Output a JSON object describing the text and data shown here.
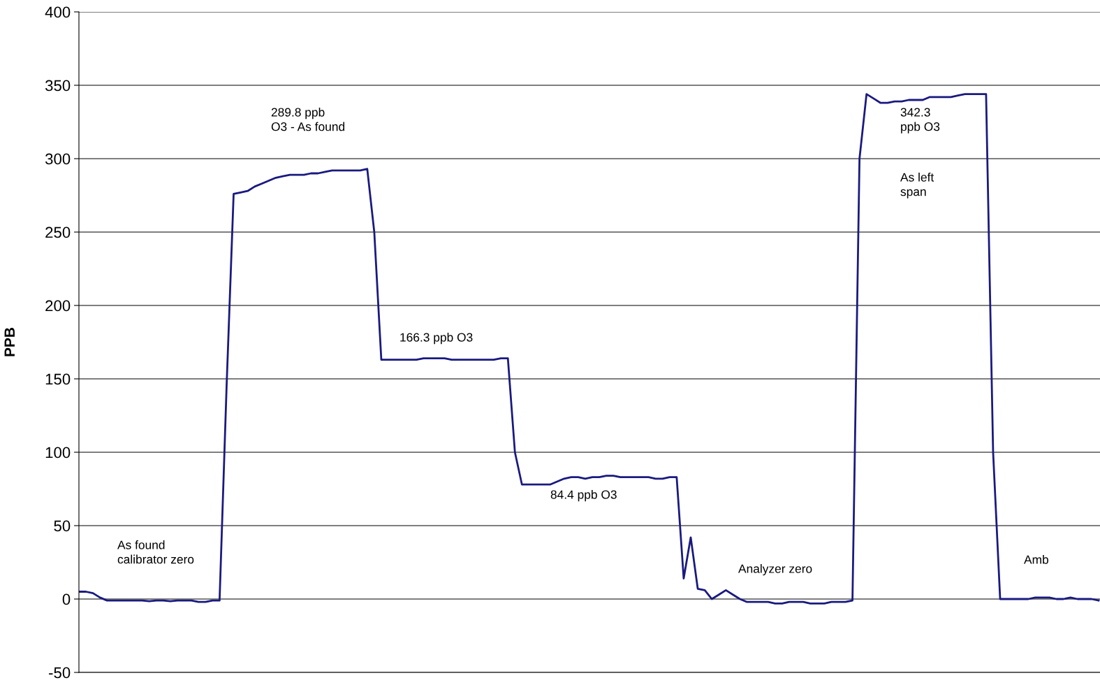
{
  "chart_data": {
    "type": "line",
    "ylabel": "PPB",
    "color": "#1a1a80",
    "categories": [
      null,
      null,
      null,
      null,
      null,
      null,
      null,
      null,
      null,
      null,
      null,
      null,
      null,
      null,
      null,
      null,
      null,
      null,
      null,
      null,
      null,
      null,
      null,
      null,
      null,
      null,
      null,
      null,
      null,
      null,
      null,
      null,
      null,
      null,
      null,
      null,
      null,
      null,
      null,
      null,
      null,
      null,
      null,
      null,
      null,
      null,
      null,
      null,
      null,
      null,
      null,
      null,
      null,
      null,
      null,
      null,
      null,
      null,
      null,
      null,
      null,
      null,
      null,
      null,
      null,
      null,
      null,
      null,
      null,
      null,
      null,
      null,
      null,
      null,
      null,
      null,
      null,
      null,
      null,
      null,
      null,
      null,
      null,
      null,
      null,
      null,
      null,
      null,
      null,
      null,
      null,
      null,
      null,
      null,
      null,
      null,
      null,
      null,
      null,
      null,
      null,
      null,
      null,
      null,
      null,
      null,
      null,
      null,
      null,
      null,
      null,
      null,
      null,
      null,
      null,
      null,
      null,
      null,
      null,
      null,
      null,
      null,
      null,
      null,
      null,
      null,
      null,
      null,
      null,
      null,
      null,
      null,
      null,
      null,
      null,
      null,
      null,
      null,
      null,
      null,
      null,
      null,
      null,
      null,
      null,
      null
    ],
    "values": [
      5,
      5,
      4,
      1,
      -1,
      -1,
      -1,
      -1,
      -1,
      -1,
      -1.5,
      -1,
      -1,
      -1.5,
      -1,
      -1,
      -1,
      -2,
      -2,
      -1,
      -1,
      145,
      276,
      277,
      278,
      281,
      283,
      285,
      287,
      288,
      289,
      289,
      289,
      290,
      290,
      291,
      292,
      292,
      292,
      292,
      292,
      293,
      250,
      163,
      163,
      163,
      163,
      163,
      163,
      164,
      164,
      164,
      164,
      163,
      163,
      163,
      163,
      163,
      163,
      163,
      164,
      164,
      100,
      78,
      78,
      78,
      78,
      78,
      80,
      82,
      83,
      83,
      82,
      83,
      83,
      84,
      84,
      83,
      83,
      83,
      83,
      83,
      82,
      82,
      83,
      83,
      14,
      42,
      7,
      6,
      0,
      3,
      6,
      3,
      0,
      -2,
      -2,
      -2,
      -2,
      -3,
      -3,
      -2,
      -2,
      -2,
      -3,
      -3,
      -3,
      -2,
      -2,
      -2,
      -1,
      300,
      344,
      341,
      338,
      338,
      339,
      339,
      340,
      340,
      340,
      342,
      342,
      342,
      342,
      343,
      344,
      344,
      344,
      344,
      100,
      0,
      0,
      0,
      0,
      0,
      1,
      1,
      1,
      0,
      0,
      1,
      0,
      0,
      0,
      -1
    ],
    "ylim": [
      -50,
      400
    ],
    "yticks": [
      -50,
      0,
      50,
      100,
      150,
      200,
      250,
      300,
      350,
      400
    ],
    "grid": "y",
    "marker": "none",
    "line_style": "solid",
    "annotations": [
      "289.8 ppb\nO3 - As found",
      "342.3\nppb O3",
      "As left\nspan",
      "166.3 ppb O3",
      "84.4 ppb O3",
      "As found\ncalibrator zero",
      "Analyzer zero",
      "Amb"
    ]
  }
}
